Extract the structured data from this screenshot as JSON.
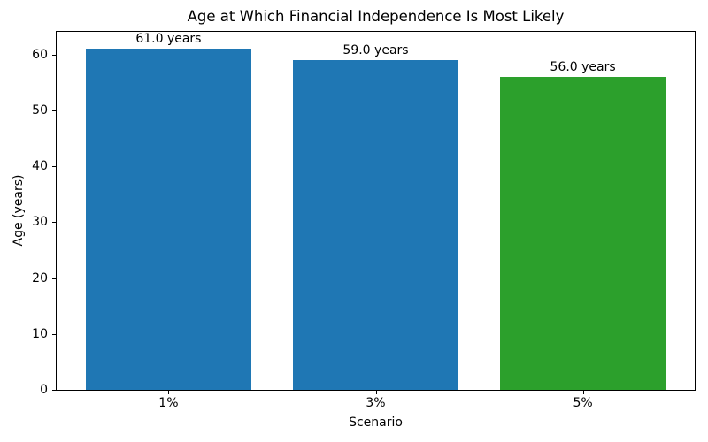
{
  "chart_data": {
    "type": "bar",
    "title": "Age at Which Financial Independence Is Most Likely",
    "xlabel": "Scenario",
    "ylabel": "Age (years)",
    "categories": [
      "1%",
      "3%",
      "5%"
    ],
    "values": [
      61.0,
      59.0,
      56.0
    ],
    "bar_labels": [
      "61.0 years",
      "59.0 years",
      "56.0 years"
    ],
    "bar_colors": [
      "#1f77b4",
      "#1f77b4",
      "#2ca02c"
    ],
    "yticks": [
      0,
      10,
      20,
      30,
      40,
      50,
      60
    ],
    "ylim": [
      0,
      64.05
    ],
    "grid": false,
    "legend": null,
    "background_color": "#ffffff",
    "spine_color": "#000000"
  }
}
